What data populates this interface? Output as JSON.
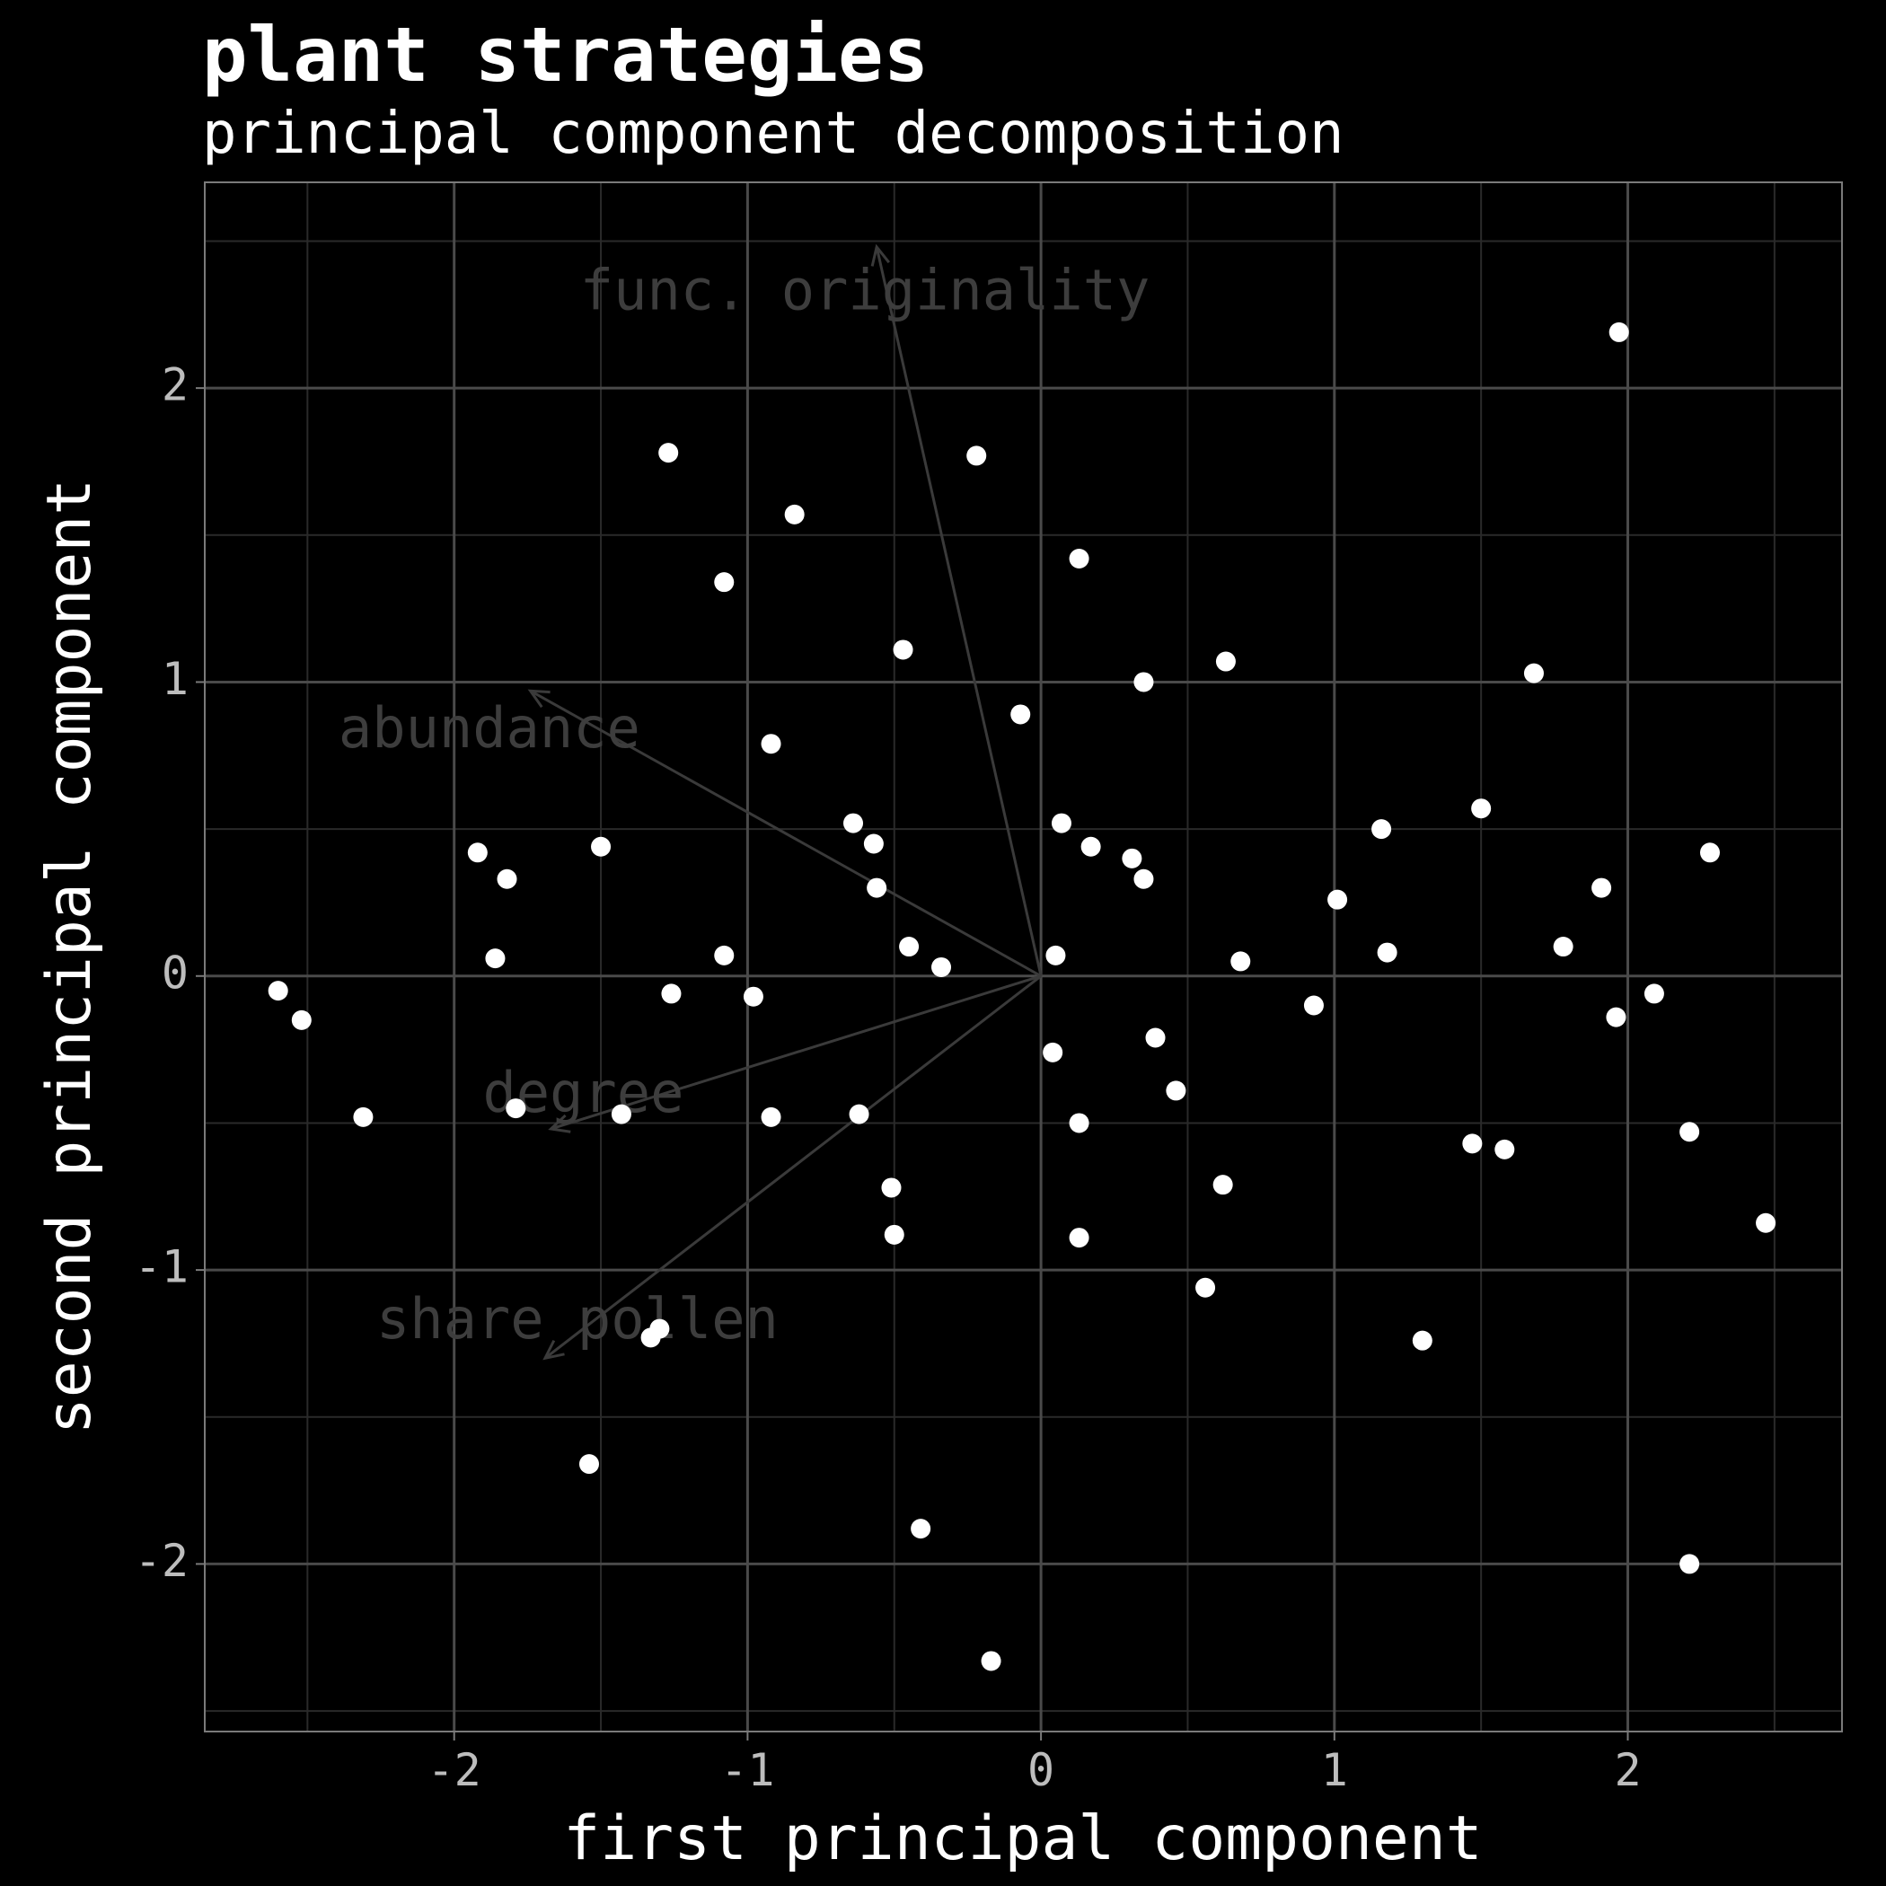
{
  "chart_data": {
    "type": "scatter",
    "title": "plant strategies",
    "subtitle": "principal component decomposition",
    "xlabel": "first principal component",
    "ylabel": "second principal component",
    "xlim": [
      -2.85,
      2.73
    ],
    "ylim": [
      -2.57,
      2.7
    ],
    "x_ticks": [
      -2,
      -1,
      0,
      1,
      2
    ],
    "y_ticks": [
      -2,
      -1,
      0,
      1,
      2
    ],
    "x_tick_labels": [
      "-2",
      "-1",
      "0",
      "1",
      "2"
    ],
    "y_tick_labels": [
      "-2",
      "-1",
      "0",
      "1",
      "2"
    ],
    "grid": true,
    "colors": {
      "background": "#000000",
      "points": "#ffffff",
      "grid_major": "#4a4a4a",
      "grid_minor": "#2a2a2a",
      "loadings": "#3a3a3a"
    },
    "points": [
      {
        "x": -2.6,
        "y": -0.05
      },
      {
        "x": -2.52,
        "y": -0.15
      },
      {
        "x": -2.31,
        "y": -0.48
      },
      {
        "x": -1.92,
        "y": 0.42
      },
      {
        "x": -1.82,
        "y": 0.33
      },
      {
        "x": -1.86,
        "y": 0.06
      },
      {
        "x": -1.79,
        "y": -0.45
      },
      {
        "x": -1.5,
        "y": 0.44
      },
      {
        "x": -1.43,
        "y": -0.47
      },
      {
        "x": -1.54,
        "y": -1.66
      },
      {
        "x": -1.33,
        "y": -1.23
      },
      {
        "x": -1.3,
        "y": -1.2
      },
      {
        "x": -1.27,
        "y": 1.78
      },
      {
        "x": -1.26,
        "y": -0.06
      },
      {
        "x": -1.08,
        "y": 1.34
      },
      {
        "x": -1.08,
        "y": 0.07
      },
      {
        "x": -0.98,
        "y": -0.07
      },
      {
        "x": -0.92,
        "y": 0.79
      },
      {
        "x": -0.92,
        "y": -0.48
      },
      {
        "x": -0.84,
        "y": 1.57
      },
      {
        "x": -0.64,
        "y": 0.52
      },
      {
        "x": -0.62,
        "y": -0.47
      },
      {
        "x": -0.57,
        "y": 0.45
      },
      {
        "x": -0.56,
        "y": 0.3
      },
      {
        "x": -0.51,
        "y": -0.72
      },
      {
        "x": -0.5,
        "y": -0.88
      },
      {
        "x": -0.47,
        "y": 1.11
      },
      {
        "x": -0.45,
        "y": 0.1
      },
      {
        "x": -0.41,
        "y": -1.88
      },
      {
        "x": -0.34,
        "y": 0.03
      },
      {
        "x": -0.22,
        "y": 1.77
      },
      {
        "x": -0.17,
        "y": -2.33
      },
      {
        "x": -0.07,
        "y": 0.89
      },
      {
        "x": 0.04,
        "y": -0.26
      },
      {
        "x": 0.05,
        "y": 0.07
      },
      {
        "x": 0.07,
        "y": 0.52
      },
      {
        "x": 0.13,
        "y": 1.42
      },
      {
        "x": 0.13,
        "y": -0.5
      },
      {
        "x": 0.13,
        "y": -0.89
      },
      {
        "x": 0.17,
        "y": 0.44
      },
      {
        "x": 0.31,
        "y": 0.4
      },
      {
        "x": 0.35,
        "y": 1.0
      },
      {
        "x": 0.35,
        "y": 0.33
      },
      {
        "x": 0.39,
        "y": -0.21
      },
      {
        "x": 0.46,
        "y": -0.39
      },
      {
        "x": 0.56,
        "y": -1.06
      },
      {
        "x": 0.62,
        "y": -0.71
      },
      {
        "x": 0.63,
        "y": 1.07
      },
      {
        "x": 0.68,
        "y": 0.05
      },
      {
        "x": 0.93,
        "y": -0.1
      },
      {
        "x": 1.01,
        "y": 0.26
      },
      {
        "x": 1.16,
        "y": 0.5
      },
      {
        "x": 1.18,
        "y": 0.08
      },
      {
        "x": 1.3,
        "y": -1.24
      },
      {
        "x": 1.47,
        "y": -0.57
      },
      {
        "x": 1.5,
        "y": 0.57
      },
      {
        "x": 1.58,
        "y": -0.59
      },
      {
        "x": 1.68,
        "y": 1.03
      },
      {
        "x": 1.78,
        "y": 0.1
      },
      {
        "x": 1.91,
        "y": 0.3
      },
      {
        "x": 1.96,
        "y": -0.14
      },
      {
        "x": 1.97,
        "y": 2.19
      },
      {
        "x": 2.09,
        "y": -0.06
      },
      {
        "x": 2.21,
        "y": -0.53
      },
      {
        "x": 2.21,
        "y": -2.0
      },
      {
        "x": 2.28,
        "y": 0.42
      },
      {
        "x": 2.47,
        "y": -0.84
      }
    ],
    "loadings": [
      {
        "label": "func. originality",
        "x": -0.56,
        "y": 2.48,
        "label_x": -0.6,
        "label_y": 2.32
      },
      {
        "label": "abundance",
        "x": -1.74,
        "y": 0.97,
        "label_x": -1.88,
        "label_y": 0.83
      },
      {
        "label": "degree",
        "x": -1.67,
        "y": -0.52,
        "label_x": -1.56,
        "label_y": -0.41
      },
      {
        "label": "share pollen",
        "x": -1.69,
        "y": -1.3,
        "label_x": -1.58,
        "label_y": -1.18
      }
    ]
  }
}
